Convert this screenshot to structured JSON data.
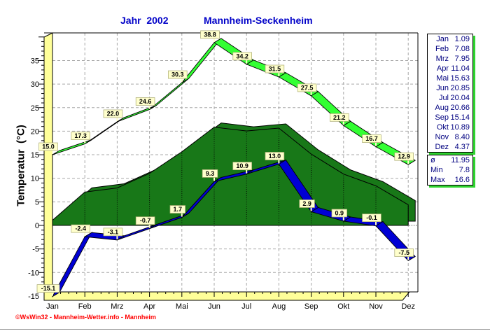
{
  "header": {
    "year_title": "Jahr  2002",
    "station_title": "Mannheim-Seckenheim"
  },
  "y_axis": {
    "title": "Temperatur  (°C)",
    "tick_labels": [
      "35",
      "30",
      "25",
      "20",
      "15",
      "10",
      "5",
      "0",
      "-5",
      "-10",
      "-15"
    ],
    "tick_values": [
      35,
      30,
      25,
      20,
      15,
      10,
      5,
      0,
      -5,
      -10,
      -15
    ]
  },
  "x_axis": {
    "months": [
      "Jan",
      "Feb",
      "Mrz",
      "Apr",
      "Mai",
      "Jun",
      "Jul",
      "Aug",
      "Sep",
      "Okt",
      "Nov",
      "Dez"
    ]
  },
  "panel": {
    "rows": [
      {
        "month": "Jan",
        "value": "1.09"
      },
      {
        "month": "Feb",
        "value": "7.08"
      },
      {
        "month": "Mrz",
        "value": "7.95"
      },
      {
        "month": "Apr",
        "value": "11.04"
      },
      {
        "month": "Mai",
        "value": "15.63"
      },
      {
        "month": "Jun",
        "value": "20.85"
      },
      {
        "month": "Jul",
        "value": "20.04"
      },
      {
        "month": "Aug",
        "value": "20.66"
      },
      {
        "month": "Sep",
        "value": "15.14"
      },
      {
        "month": "Okt",
        "value": "10.89"
      },
      {
        "month": "Nov",
        "value": "8.40"
      },
      {
        "month": "Dez",
        "value": "4.37"
      }
    ],
    "summary": [
      {
        "label": "ø",
        "value": "11.95"
      },
      {
        "label": "Min",
        "value": "7.8"
      },
      {
        "label": "Max",
        "value": "16.6"
      }
    ]
  },
  "footer": {
    "copyright": "©WsWin32 - Mannheim-Wetter.info - Mannheim"
  },
  "colors": {
    "title_blue": "#0000C8",
    "panel_navy": "#000080",
    "max_green": "#33FF33",
    "mean_dark_green": "#187818",
    "min_blue": "#0000D4",
    "axis_band_yellow": "#FFFF99",
    "label_box_bg": "#FFFFCC",
    "grid_gray": "#A8A8A8",
    "copyright_red": "#FF0000"
  },
  "chart_data": {
    "type": "line",
    "title": "Jahr 2002 — Mannheim-Seckenheim",
    "ylabel": "Temperatur (°C)",
    "ylim": [
      -15,
      41
    ],
    "grid": true,
    "legend_position": "none",
    "categories": [
      "Jan",
      "Feb",
      "Mrz",
      "Apr",
      "Mai",
      "Jun",
      "Jul",
      "Aug",
      "Sep",
      "Okt",
      "Nov",
      "Dez"
    ],
    "series": [
      {
        "name": "Maximum",
        "values": [
          15.0,
          17.3,
          22.0,
          24.6,
          30.3,
          38.8,
          34.2,
          31.5,
          27.5,
          21.2,
          16.7,
          12.9
        ],
        "labels": [
          "15.0",
          "17.3",
          "22.0",
          "24.6",
          "30.3",
          "38.8",
          "34.2",
          "31.5",
          "27.5",
          "21.2",
          "16.7",
          "12.9"
        ]
      },
      {
        "name": "Mittel",
        "values": [
          1.09,
          7.08,
          7.95,
          11.04,
          15.63,
          20.85,
          20.04,
          20.66,
          15.14,
          10.89,
          8.4,
          4.37
        ],
        "labels": []
      },
      {
        "name": "Minimum",
        "values": [
          -15.1,
          -2.4,
          -3.1,
          -0.7,
          1.7,
          9.3,
          10.9,
          13.0,
          2.9,
          0.9,
          -0.1,
          -7.5
        ],
        "labels": [
          "-15.1",
          "-2.4",
          "-3.1",
          "-0.7",
          "1.7",
          "9.3",
          "10.9",
          "13.0",
          "2.9",
          "0.9",
          "-0.1",
          "-7.5"
        ]
      }
    ],
    "yearly_summary": {
      "mean": 11.95,
      "mean_min": 7.8,
      "mean_max": 16.6
    }
  }
}
